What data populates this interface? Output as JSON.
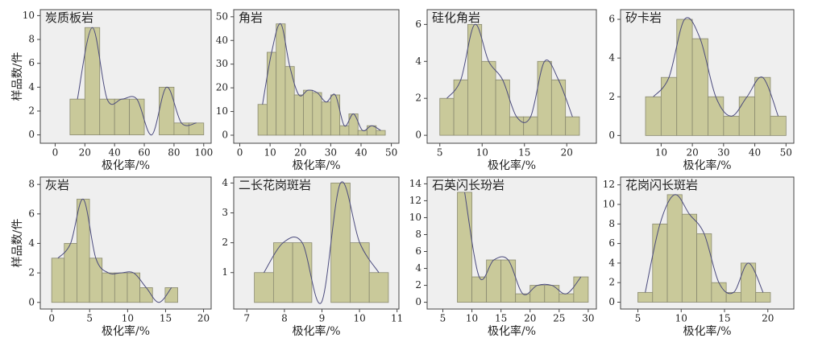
{
  "chart_data": [
    {
      "type": "histogram",
      "title": "炭质板岩",
      "xlabel": "极化率/%",
      "ylabel": "样品数/件",
      "bins": [
        10,
        20,
        30,
        40,
        50,
        60,
        70,
        80,
        90,
        100
      ],
      "counts": [
        3,
        9,
        3,
        3,
        3,
        0,
        4,
        1,
        1
      ],
      "xlim": [
        -10,
        105
      ],
      "xticks": [
        0,
        20,
        40,
        60,
        80,
        100
      ],
      "ylim": [
        -0.7,
        10.5
      ],
      "yticks": [
        0,
        2,
        4,
        6,
        8,
        10
      ],
      "color": "#c9c99a",
      "curve_color": "#4b4b7d"
    },
    {
      "type": "histogram",
      "title": "角岩",
      "xlabel": "极化率/%",
      "bins": [
        6,
        9,
        12,
        15,
        18,
        21,
        24,
        27,
        30,
        33,
        36,
        39,
        42,
        45,
        48
      ],
      "counts": [
        13,
        35,
        47,
        29,
        17,
        19,
        18,
        14,
        17,
        4,
        9,
        2,
        4,
        2
      ],
      "xlim": [
        -2,
        52.5
      ],
      "xticks": [
        0,
        10,
        20,
        30,
        40,
        50
      ],
      "ylim": [
        -3.4,
        53
      ],
      "yticks": [
        0,
        10,
        20,
        30,
        40,
        50
      ],
      "color": "#c9c99a",
      "curve_color": "#4b4b7d"
    },
    {
      "type": "histogram",
      "title": "硅化角岩",
      "xlabel": "极化率/%",
      "bins": [
        5,
        6.65,
        8.3,
        9.95,
        11.6,
        13.25,
        14.9,
        16.55,
        18.2,
        19.85,
        21.5
      ],
      "counts": [
        2,
        3,
        6,
        4,
        3,
        1,
        1,
        4,
        3,
        1
      ],
      "xlim": [
        3.5,
        23.5
      ],
      "xticks": [
        5,
        10,
        15,
        20
      ],
      "ylim": [
        -0.43,
        6.8
      ],
      "yticks": [
        0,
        2,
        4,
        6
      ],
      "color": "#c9c99a",
      "curve_color": "#4b4b7d"
    },
    {
      "type": "histogram",
      "title": "矽卡岩",
      "xlabel": "极化率/%",
      "bins": [
        5,
        10,
        15,
        20,
        25,
        30,
        35,
        40,
        45,
        50
      ],
      "counts": [
        2,
        3,
        6,
        5,
        2,
        1,
        2,
        3,
        1
      ],
      "xlim": [
        -3,
        52.5
      ],
      "xticks": [
        10,
        20,
        30,
        40,
        50
      ],
      "ylim": [
        -0.4,
        6.5
      ],
      "yticks": [
        0,
        2,
        4,
        6
      ],
      "color": "#c9c99a",
      "curve_color": "#4b4b7d"
    },
    {
      "type": "histogram",
      "title": "灰岩",
      "xlabel": "极化率/%",
      "ylabel": "样品数/件",
      "bins": [
        0,
        1.66,
        3.32,
        4.98,
        6.64,
        8.3,
        9.96,
        11.62,
        13.28,
        14.94,
        16.6
      ],
      "counts": [
        3,
        4,
        7,
        3,
        2,
        2,
        2,
        1,
        0,
        1
      ],
      "xlim": [
        -1.5,
        21
      ],
      "xticks": [
        0,
        5,
        10,
        15,
        20
      ],
      "ylim": [
        -0.45,
        8.5
      ],
      "yticks": [
        0,
        2,
        4,
        6,
        8
      ],
      "color": "#c9c99a",
      "curve_color": "#4b4b7d"
    },
    {
      "type": "histogram",
      "title": "二长花岗斑岩",
      "xlabel": "极化率/%",
      "bins": [
        7.2,
        7.71,
        8.22,
        8.73,
        9.24,
        9.75,
        10.26,
        10.77
      ],
      "counts": [
        1,
        2,
        2,
        0,
        4,
        2,
        1
      ],
      "xlim": [
        6.65,
        11.05
      ],
      "xticks": [
        7,
        8,
        9,
        10,
        11
      ],
      "ylim": [
        -0.22,
        4.2
      ],
      "yticks": [
        1,
        2,
        3,
        4
      ],
      "color": "#c9c99a",
      "curve_color": "#4b4b7d"
    },
    {
      "type": "histogram",
      "title": "石英闪长玢岩",
      "xlabel": "极化率/%",
      "bins": [
        7.5,
        10,
        12.5,
        15,
        17.5,
        20,
        22.5,
        25,
        27.5,
        30
      ],
      "counts": [
        13,
        3,
        5,
        5,
        1,
        2,
        2,
        1,
        3
      ],
      "xlim": [
        2.3,
        31.4
      ],
      "xticks": [
        5,
        10,
        15,
        20,
        25,
        30
      ],
      "ylim": [
        -0.8,
        14.8
      ],
      "yticks": [
        0,
        2,
        4,
        6,
        8,
        10,
        12,
        14
      ],
      "color": "#c9c99a",
      "curve_color": "#4b4b7d"
    },
    {
      "type": "histogram",
      "title": "花岗闪长斑岩",
      "xlabel": "极化率/%",
      "bins": [
        5,
        6.7,
        8.4,
        10.1,
        11.8,
        13.5,
        15.2,
        16.9,
        18.6,
        20.3
      ],
      "counts": [
        1,
        8,
        11,
        9,
        7,
        2,
        1,
        4,
        1
      ],
      "xlim": [
        3,
        23
      ],
      "xticks": [
        5,
        10,
        15,
        20
      ],
      "ylim": [
        -0.7,
        12.8
      ],
      "yticks": [
        0,
        2,
        4,
        6,
        8,
        10,
        12
      ],
      "color": "#c9c99a",
      "curve_color": "#4b4b7d"
    }
  ]
}
